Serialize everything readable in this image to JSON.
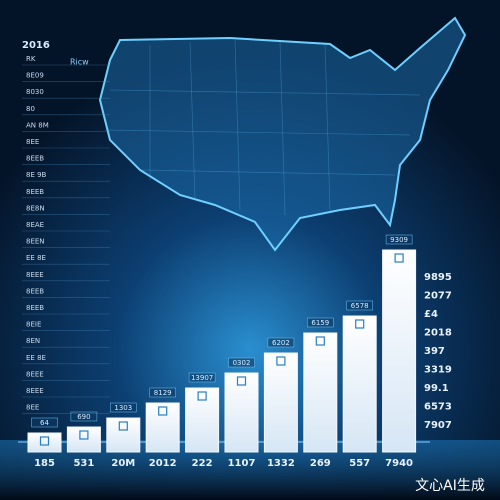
{
  "chart_data": {
    "type": "bar",
    "title": "2016",
    "subtitle": "Ricw",
    "categories": [
      "185",
      "531",
      "20M",
      "2012",
      "222",
      "1107",
      "1332",
      "269",
      "557",
      "7940"
    ],
    "values": [
      19,
      25,
      34,
      49,
      64,
      79,
      99,
      119,
      136,
      202
    ],
    "bar_labels": [
      "64",
      "690",
      "1303",
      "8129",
      "13907",
      "0302",
      "6202",
      "6159",
      "6578",
      "9309"
    ],
    "right_labels": [
      "9895",
      "2077",
      "£4",
      "2018",
      "397",
      "3319",
      "99.1",
      "6573",
      "7907"
    ],
    "side_labels": [
      "RK",
      "8E09",
      "8030",
      "80",
      "AN 8M",
      "8EE",
      "8EEB",
      "8E 9B",
      "8EEB",
      "8E8N",
      "8EAE",
      "8EEN",
      "EE 8E",
      "8EEE",
      "8EEB",
      "8EEB",
      "8EIE",
      "8EN",
      "EE 8E",
      "8EEE",
      "8EEE",
      "8EE"
    ],
    "color": "#f4f8fc",
    "ylim": [
      0,
      220
    ]
  },
  "watermark": "文心AI生成"
}
